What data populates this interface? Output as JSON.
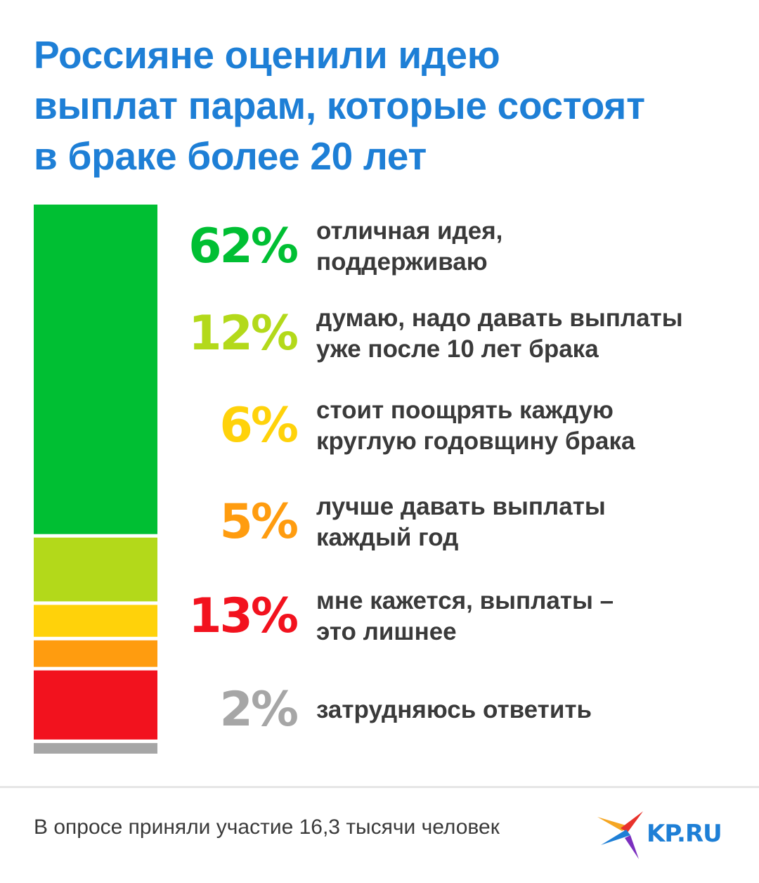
{
  "header": {
    "title_lines": [
      "Россияне оценили идею",
      "выплат парам, которые состоят",
      "в браке более 20 лет"
    ]
  },
  "chart_data": {
    "type": "bar",
    "orientation": "stacked-vertical",
    "unit": "%",
    "categories": [
      "отличная идея, поддерживаю",
      "думаю, надо давать выплаты уже после 10 лет брака",
      "стоит поощрять каждую круглую годовщину брака",
      "лучше давать выплаты каждый год",
      "мне кажется, выплаты – это лишнее",
      "затрудняюсь ответить"
    ],
    "values": [
      62,
      12,
      6,
      5,
      13,
      2
    ],
    "value_labels": [
      "62%",
      "12%",
      "6%",
      "5%",
      "13%",
      "2%"
    ],
    "label_lines": [
      [
        "отличная идея,",
        "поддерживаю"
      ],
      [
        "думаю, надо давать выплаты",
        "уже после 10 лет брака"
      ],
      [
        "стоит поощрять каждую",
        "круглую годовщину брака"
      ],
      [
        "лучше давать выплаты",
        "каждый год"
      ],
      [
        "мне кажется, выплаты –",
        "это лишнее"
      ],
      [
        "затрудняюсь ответить"
      ]
    ],
    "colors": [
      "#00bf33",
      "#b3d91a",
      "#ffd20a",
      "#ff9c0f",
      "#f2121e",
      "#a6a6a6"
    ],
    "grid": false,
    "legend": "none"
  },
  "footer": {
    "note": "В опросе приняли участие 16,3 тысячи человек",
    "logo_text": "KP.RU",
    "logo_colors": [
      "#f5a623",
      "#e8322b",
      "#1e7fd6",
      "#7b2fbf"
    ]
  }
}
